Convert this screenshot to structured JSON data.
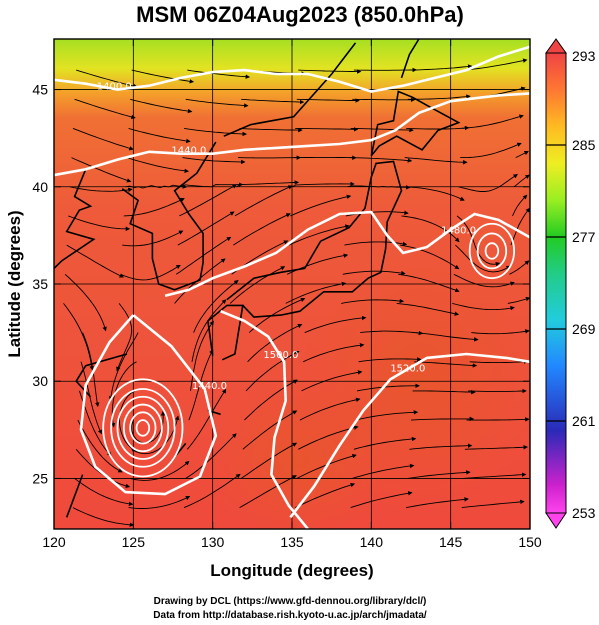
{
  "title": "MSM 06Z04Aug2023 (850.0hPa)",
  "credits": {
    "line1": "Drawing by DCL (https://www.gfd-dennou.org/library/dcl/)",
    "line2": "Data from http://database.rish.kyoto-u.ac.jp/arch/jmadata/"
  },
  "colors": {
    "ocean_warm": "#f04a3c",
    "warm_orange": "#f26a2e",
    "cool_green": "#9ee022",
    "contour": "#ffffff",
    "streamline": "#000000",
    "land_outline": "#000000"
  },
  "chart_data": {
    "type": "heatmap",
    "title": "MSM 06Z04Aug2023 (850.0hPa)",
    "xlabel": "Longitude (degrees)",
    "ylabel": "Latitude  (degrees)",
    "xlim": [
      120,
      150
    ],
    "ylim": [
      22.4,
      47.6
    ],
    "x_ticks": [
      120,
      125,
      130,
      135,
      140,
      145,
      150
    ],
    "y_ticks": [
      25,
      30,
      35,
      40,
      45
    ],
    "x_tick_labels": [
      "120",
      "125",
      "130",
      "135",
      "140",
      "145",
      "150"
    ],
    "y_tick_labels": [
      "25",
      "30",
      "35",
      "40",
      "45"
    ],
    "grid": true,
    "colorbar": {
      "min": 253,
      "max": 293,
      "ticks": [
        293,
        285,
        277,
        269,
        261,
        253
      ],
      "tick_labels": [
        "293",
        "285",
        "277",
        "269",
        "261",
        "253"
      ],
      "stops": [
        "#ff44ee",
        "#cc22cc",
        "#2222bb",
        "#2288ff",
        "#22ccdd",
        "#22cc88",
        "#22cc22",
        "#99ee22",
        "#eeee22",
        "#ffbb22",
        "#ff7733",
        "#ee4444"
      ]
    },
    "contours": [
      {
        "label": "1400.0",
        "label_lon": 123.8,
        "label_lat": 45.0,
        "points": [
          [
            120,
            45.5
          ],
          [
            122,
            45.3
          ],
          [
            124,
            45.0
          ],
          [
            126,
            45.2
          ],
          [
            128,
            45.6
          ],
          [
            130,
            45.9
          ],
          [
            132,
            46.0
          ],
          [
            134,
            45.8
          ],
          [
            136,
            45.8
          ],
          [
            138,
            45.4
          ],
          [
            140,
            44.9
          ],
          [
            142,
            45.2
          ],
          [
            144,
            45.6
          ],
          [
            146,
            46.0
          ],
          [
            148,
            46.7
          ],
          [
            150,
            47.2
          ]
        ]
      },
      {
        "label": "1440.0",
        "label_lon": 128.5,
        "label_lat": 41.7,
        "points": [
          [
            120,
            40.6
          ],
          [
            122,
            40.9
          ],
          [
            124,
            41.4
          ],
          [
            126,
            41.8
          ],
          [
            128,
            41.7
          ],
          [
            130,
            41.7
          ],
          [
            132,
            41.9
          ],
          [
            134,
            42.0
          ],
          [
            136,
            42.1
          ],
          [
            138,
            42.2
          ],
          [
            140,
            42.4
          ],
          [
            141.5,
            42.9
          ],
          [
            143,
            43.8
          ],
          [
            145,
            44.4
          ],
          [
            148,
            44.7
          ],
          [
            150,
            44.8
          ]
        ]
      },
      {
        "label": "1480.0",
        "label_lon": 145.5,
        "label_lat": 37.6,
        "points": [
          [
            127,
            34.4
          ],
          [
            128.5,
            34.7
          ],
          [
            130,
            35.3
          ],
          [
            132,
            35.9
          ],
          [
            134,
            36.6
          ],
          [
            136,
            37.8
          ],
          [
            138,
            38.6
          ],
          [
            140,
            38.7
          ],
          [
            141,
            37.5
          ],
          [
            142,
            36.6
          ],
          [
            143.5,
            36.9
          ],
          [
            145,
            37.8
          ],
          [
            146.5,
            38.6
          ],
          [
            148,
            38.3
          ],
          [
            150,
            37.4
          ]
        ]
      },
      {
        "label": "1500.0",
        "label_lon": 134.3,
        "label_lat": 31.2,
        "points": [
          [
            130.5,
            33.6
          ],
          [
            132,
            33.1
          ],
          [
            133.5,
            32.3
          ],
          [
            134.5,
            31.0
          ],
          [
            134.6,
            29.0
          ],
          [
            133.9,
            27.1
          ],
          [
            133.7,
            25.2
          ],
          [
            134.8,
            23.6
          ],
          [
            136,
            22.4
          ]
        ]
      },
      {
        "label": "1520.0",
        "label_lon": 142.3,
        "label_lat": 30.5,
        "points": [
          [
            134.9,
            23.0
          ],
          [
            136.4,
            24.6
          ],
          [
            138,
            26.7
          ],
          [
            139.5,
            28.5
          ],
          [
            141.2,
            30.1
          ],
          [
            143.5,
            31.2
          ],
          [
            146,
            31.4
          ],
          [
            148.5,
            31.2
          ],
          [
            150,
            31.0
          ]
        ]
      },
      {
        "label": "1440.0",
        "label_lon": 129.8,
        "label_lat": 29.6,
        "points": [
          [
            125,
            33.4
          ],
          [
            127.4,
            31.8
          ],
          [
            129.5,
            29.6
          ],
          [
            130.2,
            27.2
          ],
          [
            129.2,
            25.1
          ],
          [
            127,
            24.2
          ],
          [
            124.5,
            24.3
          ],
          [
            122.6,
            25.6
          ],
          [
            121.7,
            27.5
          ],
          [
            122,
            29.8
          ],
          [
            123.5,
            32.0
          ],
          [
            125,
            33.4
          ]
        ]
      }
    ],
    "vortices": [
      {
        "center_lon": 125.6,
        "center_lat": 27.6,
        "radii_deg": [
          0.4,
          0.8,
          1.2,
          1.6,
          2.0,
          2.5
        ]
      },
      {
        "center_lon": 147.6,
        "center_lat": 36.7,
        "radii_deg": [
          0.4,
          0.9,
          1.4
        ]
      }
    ]
  }
}
